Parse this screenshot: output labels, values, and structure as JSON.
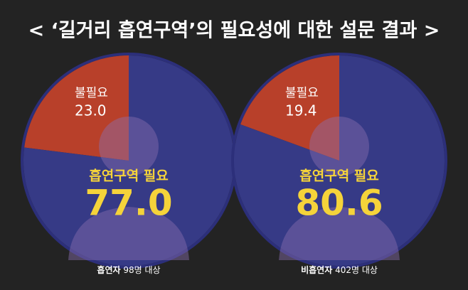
{
  "title": "< ‘길거리 흡연구역’의 필요성에 대한 설문 결과 >",
  "chart_data": [
    {
      "type": "pie",
      "categories": [
        "흡연구역 필요",
        "불필요"
      ],
      "values": [
        77,
        23
      ],
      "value_labels": [
        "77.0",
        "23.0"
      ],
      "colors": [
        "#363a86",
        "#b8402a"
      ],
      "label_colors": [
        "#f5d33a",
        "#ffffff"
      ],
      "caption": {
        "group": "흡연자",
        "count": "98명 대상"
      }
    },
    {
      "type": "pie",
      "categories": [
        "흡연구역 필요",
        "불필요"
      ],
      "values": [
        80.6,
        19.4
      ],
      "value_labels": [
        "80.6",
        "19.4"
      ],
      "colors": [
        "#363a86",
        "#b8402a"
      ],
      "label_colors": [
        "#f5d33a",
        "#ffffff"
      ],
      "caption": {
        "group": "비흡연자",
        "count": "402명 대상"
      }
    }
  ]
}
